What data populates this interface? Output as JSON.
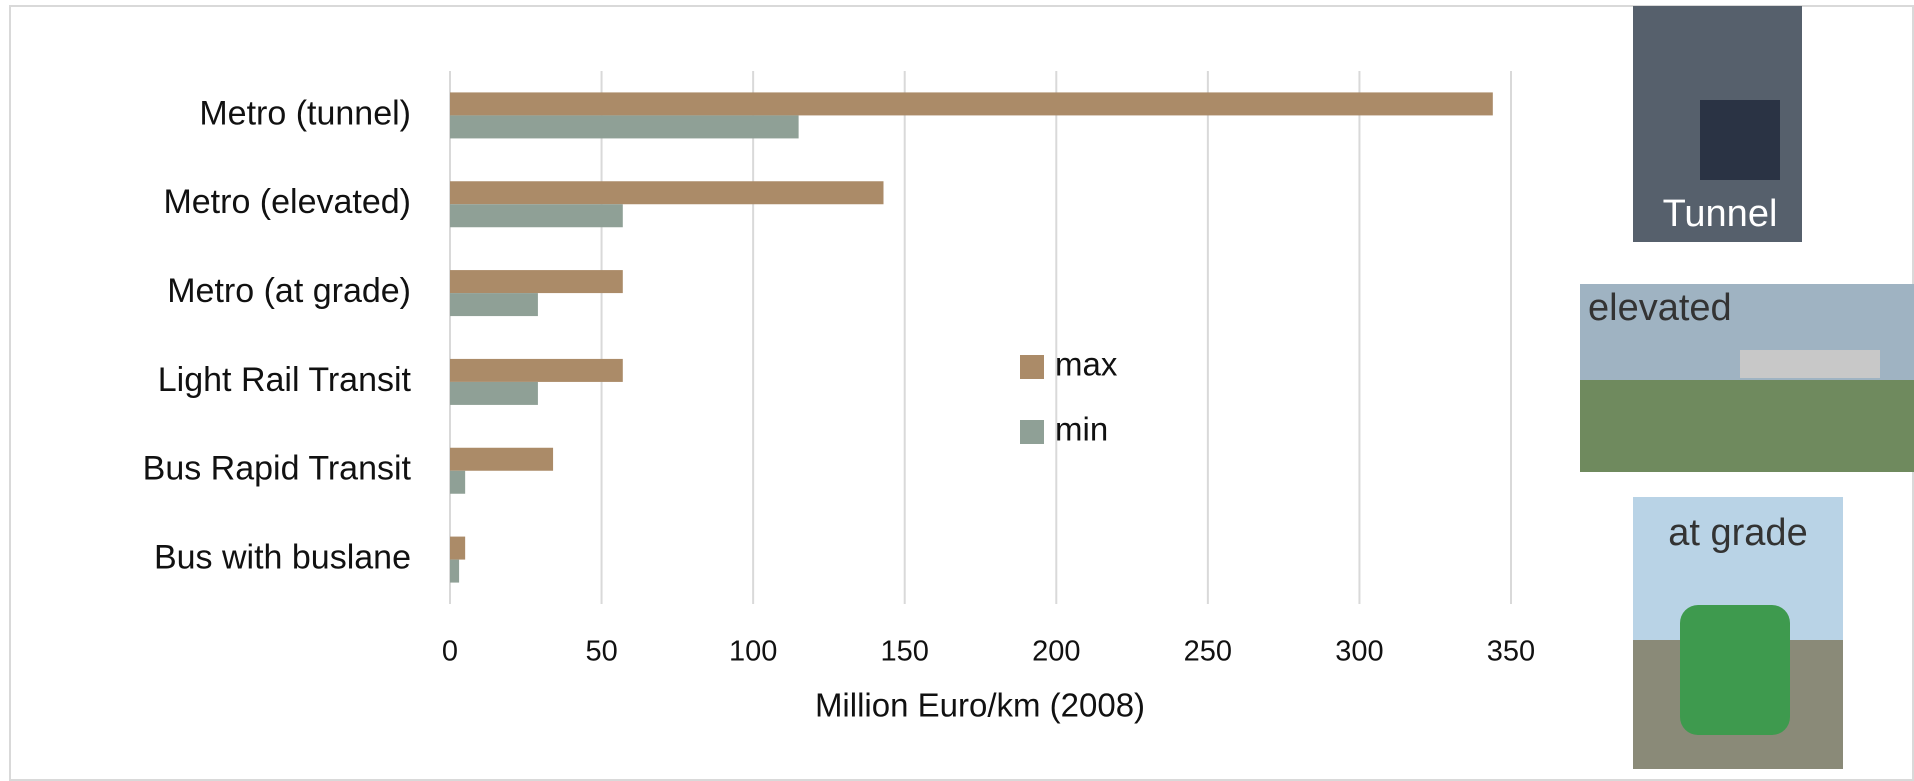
{
  "chart_data": {
    "type": "bar",
    "orientation": "horizontal",
    "categories": [
      "Metro (tunnel)",
      "Metro (elevated)",
      "Metro (at grade)",
      "Light Rail Transit",
      "Bus Rapid Transit",
      "Bus with buslane"
    ],
    "series": [
      {
        "name": "max",
        "color": "#ab8b68",
        "values": [
          344,
          143,
          57,
          57,
          34,
          5
        ]
      },
      {
        "name": "min",
        "color": "#8fa096",
        "values": [
          115,
          57,
          29,
          29,
          5,
          3
        ]
      }
    ],
    "x_label": "Million Euro/km (2008)",
    "xlim": [
      0,
      350
    ],
    "xticks": [
      0,
      50,
      100,
      150,
      200,
      250,
      300,
      350
    ],
    "grid": true,
    "annotations": [
      "Tunnel",
      "elevated",
      "at grade"
    ]
  }
}
